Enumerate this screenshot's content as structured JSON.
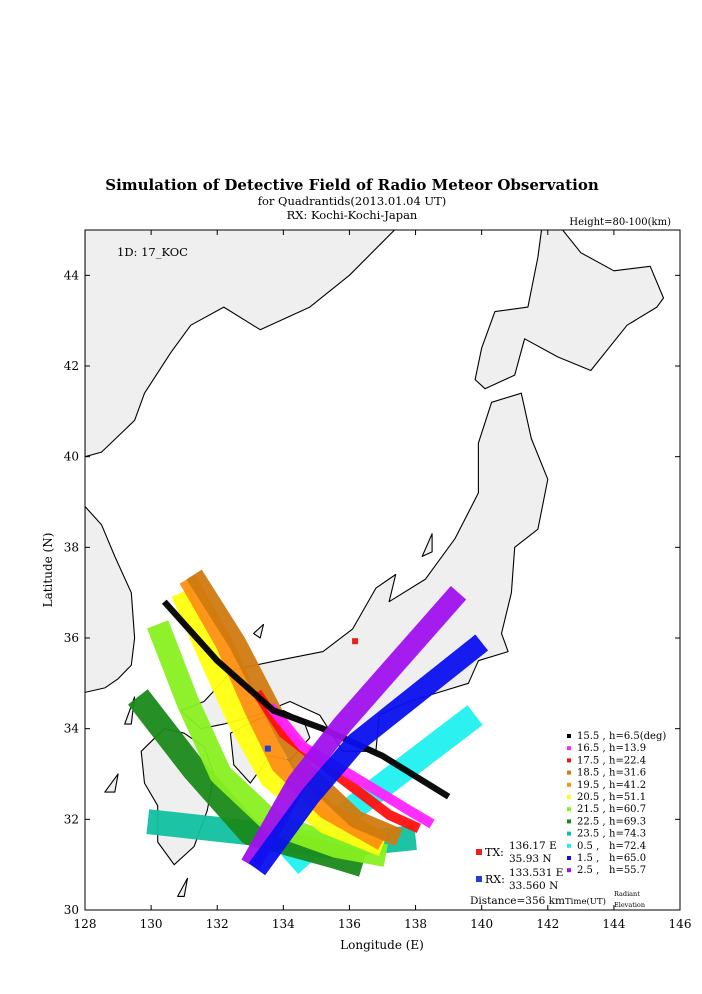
{
  "title": "Simulation of Detective Field of Radio Meteor Observation",
  "subtitle": "for Quadrantids(2013.01.04 UT)",
  "receiver_line": "RX: Kochi-Kochi-Japan",
  "height_label": "Height=80-100(km)",
  "id_label": "1D: 17_KOC",
  "xlabel": "Longitude (E)",
  "ylabel": "Latitude (N)",
  "xticks": [
    "128",
    "130",
    "132",
    "134",
    "136",
    "138",
    "140",
    "142",
    "144",
    "146"
  ],
  "yticks": [
    "30",
    "32",
    "34",
    "36",
    "38",
    "40",
    "42",
    "44"
  ],
  "xlim": [
    128,
    146
  ],
  "ylim": [
    30,
    45
  ],
  "tx": {
    "label": "TX:",
    "lon": "136.17 E",
    "lat": "35.93 N",
    "color": "#e8221c",
    "lon_val": 136.17,
    "lat_val": 35.93
  },
  "rx": {
    "label": "RX:",
    "lon": "133.531 E",
    "lat": "33.560 N",
    "color": "#1f3fd6",
    "lon_val": 133.531,
    "lat_val": 33.56
  },
  "distance": "Distance=356 km",
  "legend_footer": {
    "time": "Time(UT)",
    "radiant1": "Radiant",
    "radiant2": "Elevation"
  },
  "chart_data": {
    "type": "map",
    "series": [
      {
        "time": "15.5 ,",
        "elev": "h=6.5(deg)",
        "color": "#000000"
      },
      {
        "time": "16.5 ,",
        "elev": "h=13.9",
        "color": "#ff22ff"
      },
      {
        "time": "17.5 ,",
        "elev": "h=22.4",
        "color": "#ff1010"
      },
      {
        "time": "18.5 ,",
        "elev": "h=31.6",
        "color": "#d07a10"
      },
      {
        "time": "19.5 ,",
        "elev": "h=41.2",
        "color": "#ff9010"
      },
      {
        "time": "20.5 ,",
        "elev": "h=51.1",
        "color": "#ffff10"
      },
      {
        "time": "21.5 ,",
        "elev": "h=60.7",
        "color": "#88f020"
      },
      {
        "time": "22.5 ,",
        "elev": "h=69.3",
        "color": "#1a8a1a"
      },
      {
        "time": "23.5 ,",
        "elev": "h=74.3",
        "color": "#10c0a0"
      },
      {
        "time": "0.5 ,",
        "elev": "h=72.4",
        "color": "#20f0f0"
      },
      {
        "time": "1.5 ,",
        "elev": "h=65.0",
        "color": "#0a10ee"
      },
      {
        "time": "2.5 ,",
        "elev": "h=55.7",
        "color": "#a010ee"
      }
    ],
    "bands": [
      {
        "color": "#20f0f0",
        "w": 0.55,
        "pts": [
          [
            139.8,
            34.3
          ],
          [
            136.2,
            32.3
          ],
          [
            134.2,
            31.0
          ]
        ]
      },
      {
        "color": "#10c0a0",
        "w": 0.55,
        "pts": [
          [
            129.9,
            31.95
          ],
          [
            133.0,
            31.7
          ],
          [
            135.4,
            31.4
          ],
          [
            138.0,
            31.6
          ]
        ]
      },
      {
        "color": "#1a8a1a",
        "w": 0.55,
        "pts": [
          [
            129.6,
            34.7
          ],
          [
            131.3,
            33.1
          ],
          [
            133.0,
            31.7
          ],
          [
            135.5,
            31.2
          ],
          [
            136.4,
            31.0
          ]
        ]
      },
      {
        "color": "#88f020",
        "w": 0.5,
        "pts": [
          [
            130.2,
            36.3
          ],
          [
            131.1,
            34.6
          ],
          [
            132.1,
            33.0
          ],
          [
            133.7,
            31.9
          ],
          [
            135.6,
            31.4
          ],
          [
            137.1,
            31.2
          ]
        ]
      },
      {
        "color": "#ffff10",
        "w": 0.45,
        "pts": [
          [
            130.9,
            37.0
          ],
          [
            131.8,
            35.5
          ],
          [
            132.6,
            34.2
          ],
          [
            133.6,
            32.9
          ],
          [
            135.3,
            31.9
          ],
          [
            137.0,
            31.4
          ]
        ]
      },
      {
        "color": "#ff9010",
        "w": 0.4,
        "pts": [
          [
            131.1,
            37.3
          ],
          [
            132.2,
            35.9
          ],
          [
            133.1,
            34.4
          ],
          [
            133.9,
            33.2
          ],
          [
            135.3,
            32.2
          ],
          [
            137.0,
            31.5
          ]
        ]
      },
      {
        "color": "#d07a10",
        "w": 0.4,
        "pts": [
          [
            131.3,
            37.4
          ],
          [
            132.6,
            35.9
          ],
          [
            133.6,
            34.5
          ],
          [
            134.6,
            33.1
          ],
          [
            136.2,
            32.0
          ],
          [
            137.5,
            31.6
          ]
        ]
      },
      {
        "color": "#ff1010",
        "w": 0.22,
        "pts": [
          [
            133.2,
            34.8
          ],
          [
            134.0,
            33.9
          ],
          [
            135.4,
            33.1
          ],
          [
            137.2,
            32.1
          ],
          [
            138.1,
            31.8
          ]
        ]
      },
      {
        "color": "#ff22ff",
        "w": 0.22,
        "pts": [
          [
            133.6,
            34.5
          ],
          [
            134.6,
            33.6
          ],
          [
            136.0,
            33.0
          ],
          [
            137.8,
            32.2
          ],
          [
            138.5,
            31.9
          ]
        ]
      },
      {
        "color": "#000000",
        "w": 0.14,
        "pts": [
          [
            130.4,
            36.8
          ],
          [
            132.0,
            35.5
          ],
          [
            133.7,
            34.4
          ],
          [
            135.2,
            34.0
          ],
          [
            137.0,
            33.4
          ],
          [
            139.0,
            32.5
          ]
        ]
      },
      {
        "color": "#a010ee",
        "w": 0.45,
        "pts": [
          [
            139.3,
            37.0
          ],
          [
            135.8,
            34.1
          ],
          [
            134.4,
            32.8
          ],
          [
            133.0,
            31.0
          ]
        ]
      },
      {
        "color": "#0a10ee",
        "w": 0.45,
        "pts": [
          [
            140.0,
            35.9
          ],
          [
            136.2,
            33.7
          ],
          [
            134.8,
            32.5
          ],
          [
            133.2,
            30.9
          ]
        ]
      }
    ]
  }
}
